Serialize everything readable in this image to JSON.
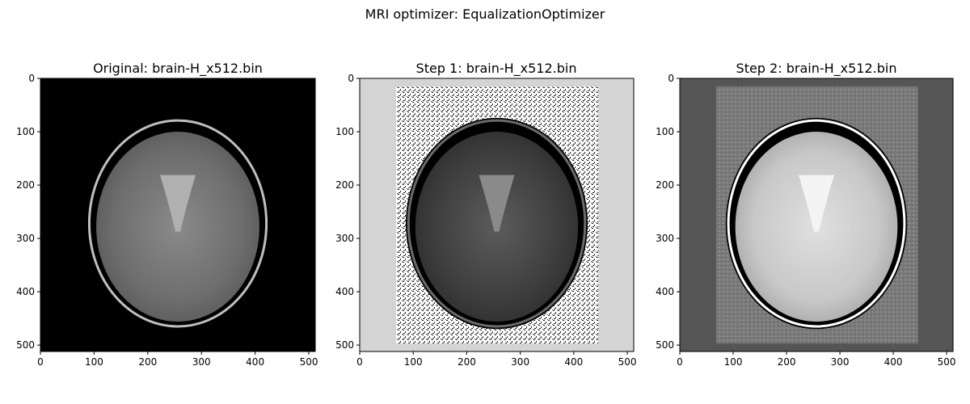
{
  "figure": {
    "suptitle": "MRI optimizer: EqualizationOptimizer"
  },
  "panels": [
    {
      "title": "Original: brain-H_x512.bin",
      "xticks": [
        "0",
        "100",
        "200",
        "300",
        "400",
        "500"
      ],
      "yticks": [
        "0",
        "100",
        "200",
        "300",
        "400",
        "500"
      ]
    },
    {
      "title": "Step 1: brain-H_x512.bin",
      "xticks": [
        "0",
        "100",
        "200",
        "300",
        "400",
        "500"
      ],
      "yticks": [
        "0",
        "100",
        "200",
        "300",
        "400",
        "500"
      ]
    },
    {
      "title": "Step 2: brain-H_x512.bin",
      "xticks": [
        "0",
        "100",
        "200",
        "300",
        "400",
        "500"
      ],
      "yticks": [
        "0",
        "100",
        "200",
        "300",
        "400",
        "500"
      ]
    }
  ],
  "colors": {
    "original_background": "#000000",
    "step1_background": "#d4d4d4",
    "step2_background": "#555555"
  }
}
